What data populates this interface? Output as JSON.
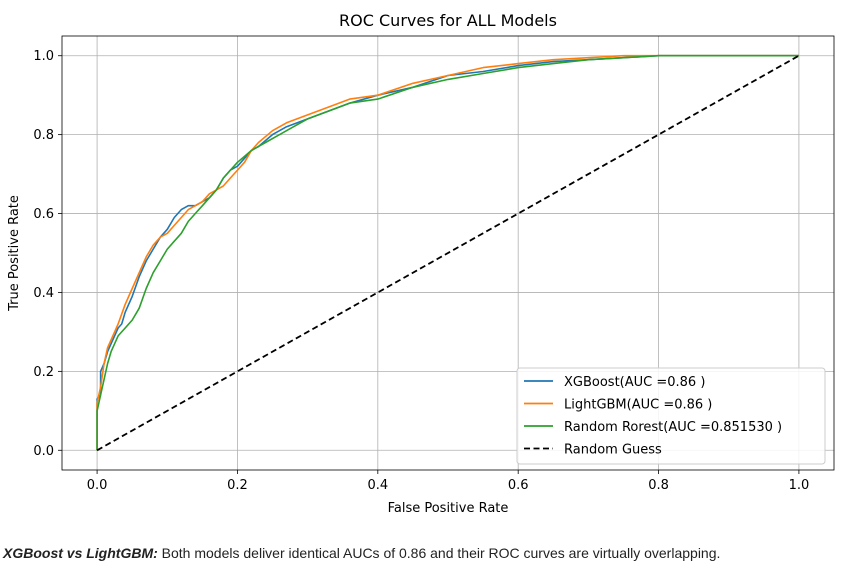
{
  "chart_data": {
    "type": "line",
    "title": "ROC Curves for ALL Models",
    "xlabel": "False Positive Rate",
    "ylabel": "True Positive Rate",
    "xlim": [
      -0.05,
      1.05
    ],
    "ylim": [
      -0.05,
      1.05
    ],
    "xticks": [
      "0.0",
      "0.2",
      "0.4",
      "0.6",
      "0.8",
      "1.0"
    ],
    "yticks": [
      "0.0",
      "0.2",
      "0.4",
      "0.6",
      "0.8",
      "1.0"
    ],
    "grid": true,
    "legend_position": "bottom-right",
    "series": [
      {
        "name": "XGBoost(AUC =0.86 )",
        "color": "#1f77b4",
        "style": "solid",
        "x": [
          0,
          0,
          0.005,
          0.005,
          0.01,
          0.015,
          0.02,
          0.025,
          0.03,
          0.035,
          0.04,
          0.05,
          0.06,
          0.07,
          0.08,
          0.09,
          0.1,
          0.11,
          0.12,
          0.13,
          0.14,
          0.15,
          0.16,
          0.17,
          0.18,
          0.19,
          0.2,
          0.21,
          0.22,
          0.23,
          0.25,
          0.27,
          0.3,
          0.33,
          0.36,
          0.4,
          0.45,
          0.5,
          0.55,
          0.6,
          0.65,
          0.7,
          0.75,
          0.8,
          0.9,
          1.0
        ],
        "y": [
          0,
          0.13,
          0.14,
          0.2,
          0.22,
          0.25,
          0.27,
          0.29,
          0.31,
          0.32,
          0.35,
          0.39,
          0.44,
          0.48,
          0.51,
          0.54,
          0.56,
          0.59,
          0.61,
          0.62,
          0.62,
          0.63,
          0.64,
          0.66,
          0.69,
          0.71,
          0.72,
          0.74,
          0.76,
          0.77,
          0.8,
          0.82,
          0.84,
          0.86,
          0.88,
          0.9,
          0.92,
          0.95,
          0.96,
          0.975,
          0.985,
          0.99,
          0.995,
          1.0,
          1.0,
          1.0
        ]
      },
      {
        "name": "LightGBM(AUC =0.86 )",
        "color": "#ff7f0e",
        "style": "solid",
        "x": [
          0,
          0,
          0.005,
          0.01,
          0.015,
          0.02,
          0.025,
          0.03,
          0.04,
          0.05,
          0.06,
          0.07,
          0.08,
          0.09,
          0.1,
          0.11,
          0.12,
          0.13,
          0.14,
          0.15,
          0.16,
          0.17,
          0.18,
          0.19,
          0.2,
          0.21,
          0.22,
          0.23,
          0.25,
          0.27,
          0.3,
          0.33,
          0.36,
          0.4,
          0.45,
          0.5,
          0.55,
          0.6,
          0.65,
          0.7,
          0.75,
          0.8,
          0.9,
          1.0
        ],
        "y": [
          0,
          0.12,
          0.16,
          0.22,
          0.26,
          0.28,
          0.3,
          0.32,
          0.37,
          0.41,
          0.45,
          0.49,
          0.52,
          0.54,
          0.55,
          0.57,
          0.59,
          0.61,
          0.62,
          0.63,
          0.65,
          0.66,
          0.67,
          0.69,
          0.71,
          0.73,
          0.76,
          0.78,
          0.81,
          0.83,
          0.85,
          0.87,
          0.89,
          0.9,
          0.93,
          0.95,
          0.97,
          0.98,
          0.99,
          0.995,
          1.0,
          1.0,
          1.0,
          1.0
        ]
      },
      {
        "name": "Random Rorest(AUC =0.851530 )",
        "color": "#2ca02c",
        "style": "solid",
        "x": [
          0,
          0,
          0.005,
          0.01,
          0.015,
          0.02,
          0.03,
          0.04,
          0.05,
          0.06,
          0.07,
          0.08,
          0.09,
          0.1,
          0.11,
          0.12,
          0.13,
          0.14,
          0.15,
          0.16,
          0.17,
          0.18,
          0.19,
          0.2,
          0.22,
          0.24,
          0.26,
          0.28,
          0.3,
          0.33,
          0.36,
          0.4,
          0.45,
          0.5,
          0.55,
          0.6,
          0.65,
          0.7,
          0.75,
          0.8,
          0.9,
          1.0
        ],
        "y": [
          0,
          0.1,
          0.14,
          0.18,
          0.22,
          0.25,
          0.29,
          0.31,
          0.33,
          0.36,
          0.41,
          0.45,
          0.48,
          0.51,
          0.53,
          0.55,
          0.58,
          0.6,
          0.62,
          0.64,
          0.66,
          0.69,
          0.71,
          0.73,
          0.76,
          0.78,
          0.8,
          0.82,
          0.84,
          0.86,
          0.88,
          0.89,
          0.92,
          0.94,
          0.955,
          0.97,
          0.98,
          0.99,
          0.995,
          1.0,
          1.0,
          1.0
        ]
      },
      {
        "name": "Random Guess",
        "color": "#000000",
        "style": "dashed",
        "x": [
          0,
          1
        ],
        "y": [
          0,
          1
        ]
      }
    ]
  },
  "caption": {
    "bold_part": "XGBoost vs LightGBM:",
    "text": " Both models deliver identical AUCs of 0.86 and their ROC curves are virtually overlapping."
  }
}
